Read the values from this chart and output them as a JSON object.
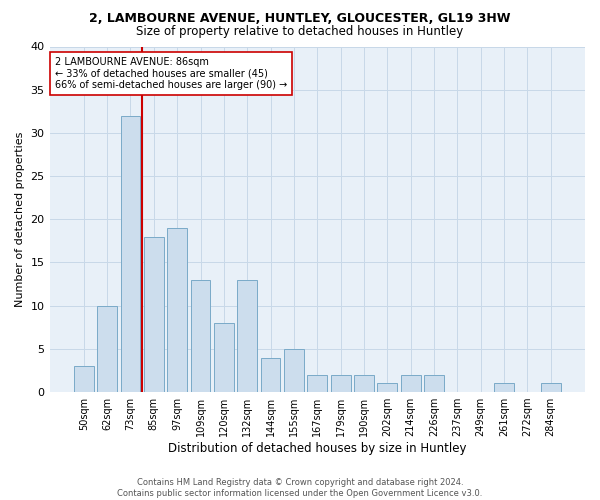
{
  "title1": "2, LAMBOURNE AVENUE, HUNTLEY, GLOUCESTER, GL19 3HW",
  "title2": "Size of property relative to detached houses in Huntley",
  "xlabel": "Distribution of detached houses by size in Huntley",
  "ylabel": "Number of detached properties",
  "bin_labels": [
    "50sqm",
    "62sqm",
    "73sqm",
    "85sqm",
    "97sqm",
    "109sqm",
    "120sqm",
    "132sqm",
    "144sqm",
    "155sqm",
    "167sqm",
    "179sqm",
    "190sqm",
    "202sqm",
    "214sqm",
    "226sqm",
    "237sqm",
    "249sqm",
    "261sqm",
    "272sqm",
    "284sqm"
  ],
  "bar_heights": [
    3,
    10,
    32,
    18,
    19,
    13,
    8,
    13,
    4,
    5,
    2,
    2,
    2,
    1,
    2,
    2,
    0,
    0,
    1,
    0,
    1
  ],
  "bar_color": "#ccdded",
  "bar_edge_color": "#7aaac8",
  "highlight_line_color": "#cc0000",
  "annotation_text": "2 LAMBOURNE AVENUE: 86sqm\n← 33% of detached houses are smaller (45)\n66% of semi-detached houses are larger (90) →",
  "annotation_box_color": "#ffffff",
  "annotation_box_edge": "#cc0000",
  "grid_color": "#c8d8e8",
  "ylim": [
    0,
    40
  ],
  "yticks": [
    0,
    5,
    10,
    15,
    20,
    25,
    30,
    35,
    40
  ],
  "footer1": "Contains HM Land Registry data © Crown copyright and database right 2024.",
  "footer2": "Contains public sector information licensed under the Open Government Licence v3.0.",
  "background_color": "#e8f0f8"
}
